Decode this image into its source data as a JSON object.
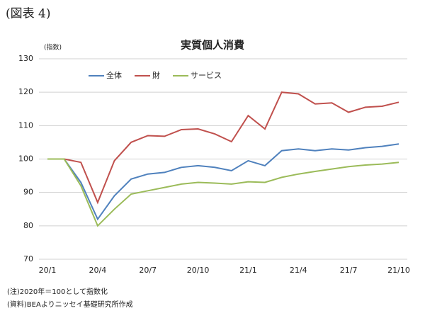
{
  "header": "(図表 4)",
  "chart_data": {
    "type": "line",
    "title": "実質個人消費",
    "y_label": "(指数)",
    "categories": [
      "20/1",
      null,
      null,
      "20/4",
      null,
      null,
      "20/7",
      null,
      null,
      "20/10",
      null,
      null,
      "21/1",
      null,
      null,
      "21/4",
      null,
      null,
      "21/7",
      null,
      null,
      "21/10"
    ],
    "series": [
      {
        "name": "全体",
        "color": "#4f81bd",
        "values": [
          100,
          100,
          93,
          82,
          89,
          94,
          95.5,
          96,
          97.5,
          98,
          97.5,
          96.5,
          99.5,
          98,
          102.5,
          103,
          102.5,
          103,
          102.7,
          103.4,
          103.8,
          104.5
        ]
      },
      {
        "name": "財",
        "color": "#c0504d",
        "values": [
          100,
          100,
          99,
          87,
          99.5,
          105,
          107,
          106.8,
          108.8,
          109,
          107.5,
          105.2,
          113,
          109,
          120,
          119.5,
          116.5,
          116.8,
          114,
          115.5,
          115.8,
          117
        ]
      },
      {
        "name": "サービス",
        "color": "#9bbb59",
        "values": [
          100,
          100,
          92,
          80,
          85,
          89.5,
          90.5,
          91.5,
          92.5,
          93,
          92.8,
          92.5,
          93.2,
          93,
          94.5,
          95.5,
          96.3,
          97,
          97.7,
          98.2,
          98.5,
          99
        ]
      }
    ],
    "ylim": [
      70,
      130
    ],
    "yticks": [
      70,
      80,
      90,
      100,
      110,
      120,
      130
    ],
    "grid": true,
    "legend": "top-left"
  },
  "notes": [
    "(注)2020年＝100として指数化",
    "(資料)BEAよりニッセイ基礎研究所作成"
  ]
}
